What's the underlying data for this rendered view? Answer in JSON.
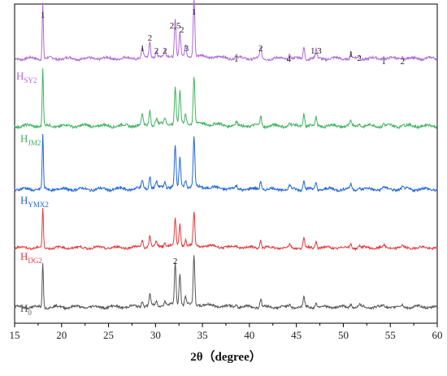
{
  "chart_data": {
    "type": "line",
    "title": "",
    "xlabel": "2θ（degree）",
    "ylabel": "",
    "xlim": [
      15,
      60
    ],
    "x_ticks": [
      15,
      20,
      25,
      30,
      35,
      40,
      45,
      50,
      55,
      60
    ],
    "y_axis_shown": false,
    "grid": false,
    "legend": "inline labels at left of each trace",
    "peaks_2theta": [
      18.0,
      28.6,
      29.4,
      30.1,
      31.0,
      32.1,
      32.6,
      33.2,
      34.1,
      38.6,
      41.2,
      44.3,
      45.8,
      47.1,
      50.8,
      51.7,
      54.3,
      56.3
    ],
    "peak_labels": [
      {
        "x": 18.0,
        "text": "1"
      },
      {
        "x": 28.6,
        "text": "1"
      },
      {
        "x": 29.4,
        "text": "2"
      },
      {
        "x": 30.1,
        "text": "2"
      },
      {
        "x": 31.0,
        "text": "2"
      },
      {
        "x": 32.1,
        "text": "2,5"
      },
      {
        "x": 32.8,
        "text": "2"
      },
      {
        "x": 33.3,
        "text": "3"
      },
      {
        "x": 34.1,
        "text": "1"
      },
      {
        "x": 38.6,
        "text": "1"
      },
      {
        "x": 41.2,
        "text": "2"
      },
      {
        "x": 44.2,
        "text": "4"
      },
      {
        "x": 47.1,
        "text": "1,3"
      },
      {
        "x": 50.8,
        "text": "1"
      },
      {
        "x": 51.7,
        "text": "2"
      },
      {
        "x": 54.3,
        "text": "1"
      },
      {
        "x": 56.3,
        "text": "2"
      },
      {
        "x": 32.1,
        "text": "2"
      }
    ],
    "series": [
      {
        "name_main": "H",
        "name_sub": "SY2",
        "color": "#b06ad6",
        "intensities": [
          1.0,
          0.18,
          0.28,
          0.14,
          0.1,
          0.68,
          0.42,
          0.18,
          1.05,
          0.07,
          0.2,
          0.09,
          0.21,
          0.16,
          0.09,
          0.06,
          0.05,
          0.04
        ]
      },
      {
        "name_main": "H",
        "name_sub": "JM2",
        "color": "#3fb35e",
        "intensities": [
          1.0,
          0.18,
          0.25,
          0.1,
          0.1,
          0.6,
          0.55,
          0.15,
          0.8,
          0.05,
          0.18,
          0.06,
          0.22,
          0.14,
          0.07,
          0.06,
          0.05,
          0.04
        ]
      },
      {
        "name_main": "H",
        "name_sub": "YMX2",
        "color": "#2166d4",
        "intensities": [
          0.95,
          0.14,
          0.22,
          0.09,
          0.1,
          0.72,
          0.52,
          0.13,
          0.88,
          0.04,
          0.16,
          0.06,
          0.18,
          0.12,
          0.08,
          0.04,
          0.04,
          0.03
        ]
      },
      {
        "name_main": "H",
        "name_sub": "DG2",
        "color": "#e23a3a",
        "intensities": [
          0.8,
          0.15,
          0.22,
          0.09,
          0.08,
          0.55,
          0.45,
          0.12,
          0.68,
          0.04,
          0.16,
          0.06,
          0.18,
          0.14,
          0.08,
          0.05,
          0.04,
          0.03
        ]
      },
      {
        "name_main": "H",
        "name_sub": "0",
        "color": "#555555",
        "intensities": [
          0.85,
          0.12,
          0.22,
          0.08,
          0.08,
          0.78,
          0.6,
          0.15,
          0.92,
          0.04,
          0.16,
          0.06,
          0.18,
          0.1,
          0.06,
          0.04,
          0.04,
          0.03
        ]
      }
    ]
  }
}
